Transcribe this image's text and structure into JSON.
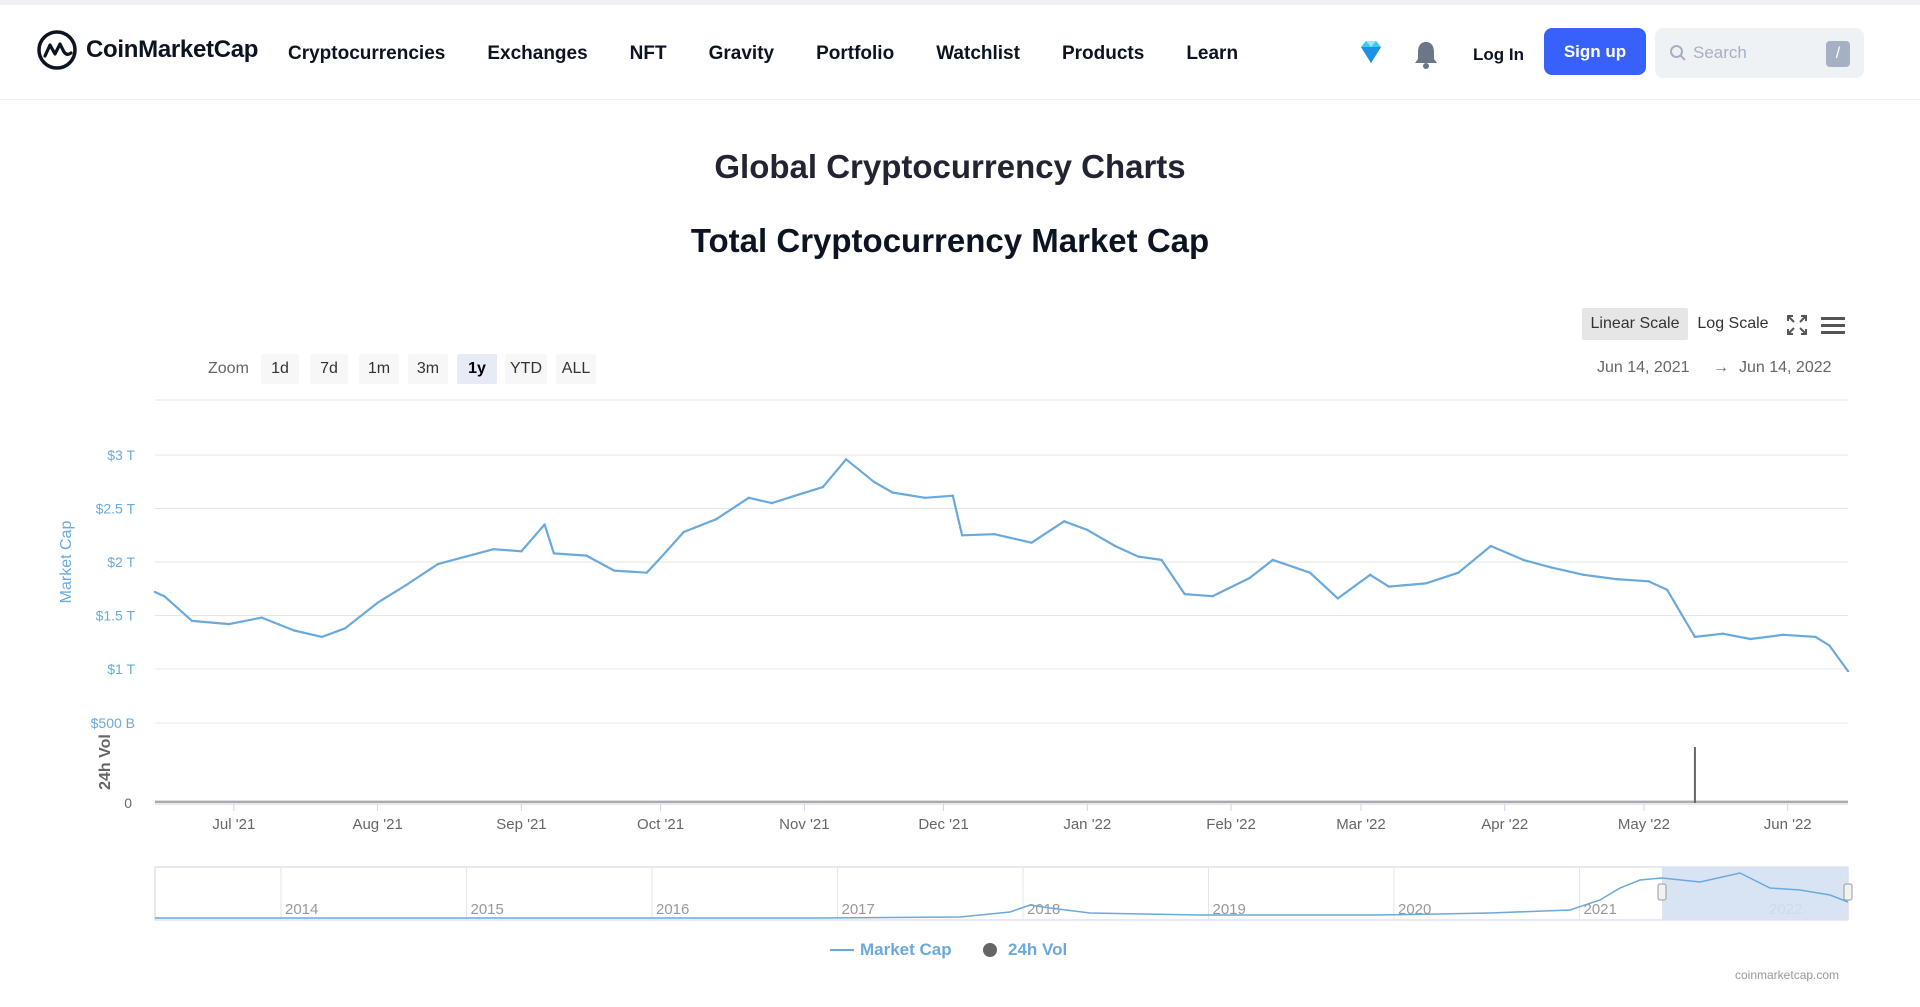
{
  "header": {
    "logo_text": "CoinMarketCap",
    "nav": [
      "Cryptocurrencies",
      "Exchanges",
      "NFT",
      "Gravity",
      "Portfolio",
      "Watchlist",
      "Products",
      "Learn"
    ],
    "login_label": "Log In",
    "signup_label": "Sign up",
    "search_placeholder": "Search",
    "search_shortcut": "/"
  },
  "page": {
    "title": "Global Cryptocurrency Charts",
    "subtitle": "Total Cryptocurrency Market Cap"
  },
  "controls": {
    "scale_linear": "Linear Scale",
    "scale_log": "Log Scale",
    "zoom_label": "Zoom",
    "zoom_options": [
      "1d",
      "7d",
      "1m",
      "3m",
      "1y",
      "YTD",
      "ALL"
    ],
    "zoom_active": "1y",
    "range_from": "Jun 14, 2021",
    "range_arrow": "→",
    "range_to": "Jun 14, 2022"
  },
  "colors": {
    "accent": "#3861fb",
    "series_market_cap": "#6aa9dc",
    "series_volume": "#666666",
    "navigator_fill": "#d4e1f2"
  },
  "chart_data": {
    "type": "line",
    "title": "Total Cryptocurrency Market Cap",
    "ylabel": "Market Cap",
    "ylabel_volume": "24h Vol",
    "y_ticks": [
      "$1 T",
      "$1.5 T",
      "$2 T",
      "$2.5 T",
      "$3 T"
    ],
    "y_tick_values": [
      1.0,
      1.5,
      2.0,
      2.5,
      3.0
    ],
    "volume_ticks": [
      "0",
      "$500 B"
    ],
    "ylim": [
      1.0,
      3.0
    ],
    "x_ticks": [
      "Jul '21",
      "Aug '21",
      "Sep '21",
      "Oct '21",
      "Nov '21",
      "Dec '21",
      "Jan '22",
      "Feb '22",
      "Mar '22",
      "Apr '22",
      "May '22",
      "Jun '22"
    ],
    "x_tick_dates": [
      "2021-07-01",
      "2021-08-01",
      "2021-09-01",
      "2021-10-01",
      "2021-11-01",
      "2021-12-01",
      "2022-01-01",
      "2022-02-01",
      "2022-03-01",
      "2022-04-01",
      "2022-05-01",
      "2022-06-01"
    ],
    "x_range": [
      "2021-06-14",
      "2022-06-14"
    ],
    "series": [
      {
        "name": "Market Cap",
        "unit": "USD trillions",
        "x": [
          "2021-06-14",
          "2021-06-16",
          "2021-06-22",
          "2021-06-30",
          "2021-07-07",
          "2021-07-14",
          "2021-07-20",
          "2021-07-25",
          "2021-08-01",
          "2021-08-07",
          "2021-08-14",
          "2021-08-20",
          "2021-08-26",
          "2021-09-01",
          "2021-09-06",
          "2021-09-08",
          "2021-09-15",
          "2021-09-21",
          "2021-09-28",
          "2021-10-01",
          "2021-10-06",
          "2021-10-13",
          "2021-10-20",
          "2021-10-25",
          "2021-10-30",
          "2021-11-05",
          "2021-11-10",
          "2021-11-16",
          "2021-11-20",
          "2021-11-27",
          "2021-12-03",
          "2021-12-05",
          "2021-12-12",
          "2021-12-20",
          "2021-12-27",
          "2022-01-01",
          "2022-01-07",
          "2022-01-12",
          "2022-01-17",
          "2022-01-22",
          "2022-01-28",
          "2022-02-05",
          "2022-02-10",
          "2022-02-18",
          "2022-02-24",
          "2022-03-03",
          "2022-03-07",
          "2022-03-15",
          "2022-03-22",
          "2022-03-29",
          "2022-04-05",
          "2022-04-11",
          "2022-04-18",
          "2022-04-25",
          "2022-05-02",
          "2022-05-06",
          "2022-05-12",
          "2022-05-18",
          "2022-05-24",
          "2022-05-31",
          "2022-06-07",
          "2022-06-10",
          "2022-06-14"
        ],
        "values": [
          1.72,
          1.68,
          1.45,
          1.42,
          1.48,
          1.36,
          1.3,
          1.38,
          1.62,
          1.78,
          1.98,
          2.05,
          2.12,
          2.1,
          2.35,
          2.08,
          2.06,
          1.92,
          1.9,
          2.04,
          2.28,
          2.4,
          2.6,
          2.55,
          2.62,
          2.7,
          2.96,
          2.75,
          2.65,
          2.6,
          2.62,
          2.25,
          2.26,
          2.18,
          2.38,
          2.3,
          2.15,
          2.05,
          2.02,
          1.7,
          1.68,
          1.85,
          2.02,
          1.9,
          1.66,
          1.88,
          1.77,
          1.8,
          1.9,
          2.15,
          2.02,
          1.95,
          1.88,
          1.84,
          1.82,
          1.74,
          1.3,
          1.33,
          1.28,
          1.32,
          1.3,
          1.22,
          0.98
        ]
      },
      {
        "name": "24h Vol",
        "unit": "USD billions",
        "spike_date": "2022-05-12",
        "baseline_approx": 15,
        "spike_value_approx": 350
      }
    ],
    "legend": [
      "Market Cap",
      "24h Vol"
    ],
    "legend_position": "bottom-center",
    "grid": true,
    "navigator": {
      "years": [
        "2014",
        "2015",
        "2016",
        "2017",
        "2018",
        "2019",
        "2020",
        "2021",
        "2022"
      ],
      "selected_range": [
        "2021-06-14",
        "2022-06-14"
      ]
    }
  },
  "footer": {
    "credit": "coinmarketcap.com"
  }
}
